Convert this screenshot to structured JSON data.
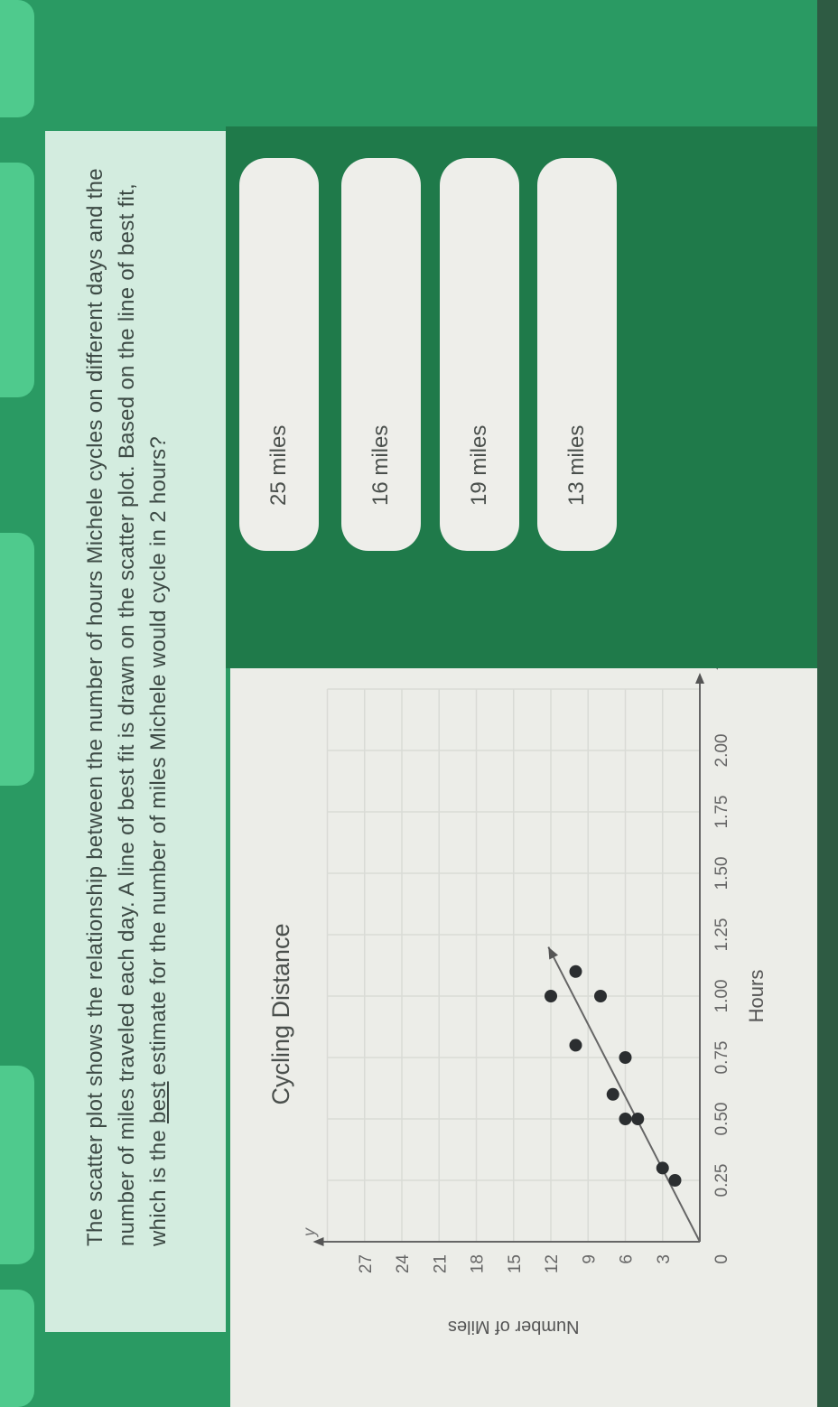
{
  "colors": {
    "background": "#2a9a63",
    "question_panel": "#d3ecdf",
    "answer_panel": "#1f7a4a",
    "tab": "#4fca8d",
    "answer_button": "#eeeeea"
  },
  "question": {
    "text_before": "The scatter plot shows the relationship between the number of hours Michele cycles on different days and the number of miles traveled each day. A line of best fit is drawn on the scatter plot. Based on the line of best fit, which is the ",
    "emphasis": "best",
    "text_after": " estimate for the number of miles Michele would cycle in 2 hours?"
  },
  "answers": [
    {
      "label": "25 miles"
    },
    {
      "label": "16 miles"
    },
    {
      "label": "19 miles"
    },
    {
      "label": "13 miles"
    }
  ],
  "chart_data": {
    "type": "scatter",
    "title": "Cycling Distance",
    "xlabel": "Hours",
    "ylabel": "Number of Miles",
    "x_axis_letter": "x",
    "y_axis_letter": "y",
    "origin_label": "0",
    "xlim": [
      0,
      2.25
    ],
    "ylim": [
      0,
      30
    ],
    "grid": true,
    "x_ticks": [
      "0.25",
      "0.50",
      "0.75",
      "1.00",
      "1.25",
      "1.50",
      "1.75",
      "2.00"
    ],
    "y_ticks": [
      "3",
      "6",
      "9",
      "12",
      "15",
      "18",
      "21",
      "24",
      "27"
    ],
    "points": [
      {
        "x": 0.25,
        "y": 2
      },
      {
        "x": 0.3,
        "y": 3
      },
      {
        "x": 0.5,
        "y": 5
      },
      {
        "x": 0.5,
        "y": 6
      },
      {
        "x": 0.6,
        "y": 7
      },
      {
        "x": 0.75,
        "y": 6
      },
      {
        "x": 0.8,
        "y": 10
      },
      {
        "x": 1.0,
        "y": 8
      },
      {
        "x": 1.0,
        "y": 12
      },
      {
        "x": 1.1,
        "y": 10
      }
    ],
    "best_fit_line": {
      "from": {
        "x": 0,
        "y": 0
      },
      "to": {
        "x": 1.2,
        "y": 12.2
      }
    }
  }
}
